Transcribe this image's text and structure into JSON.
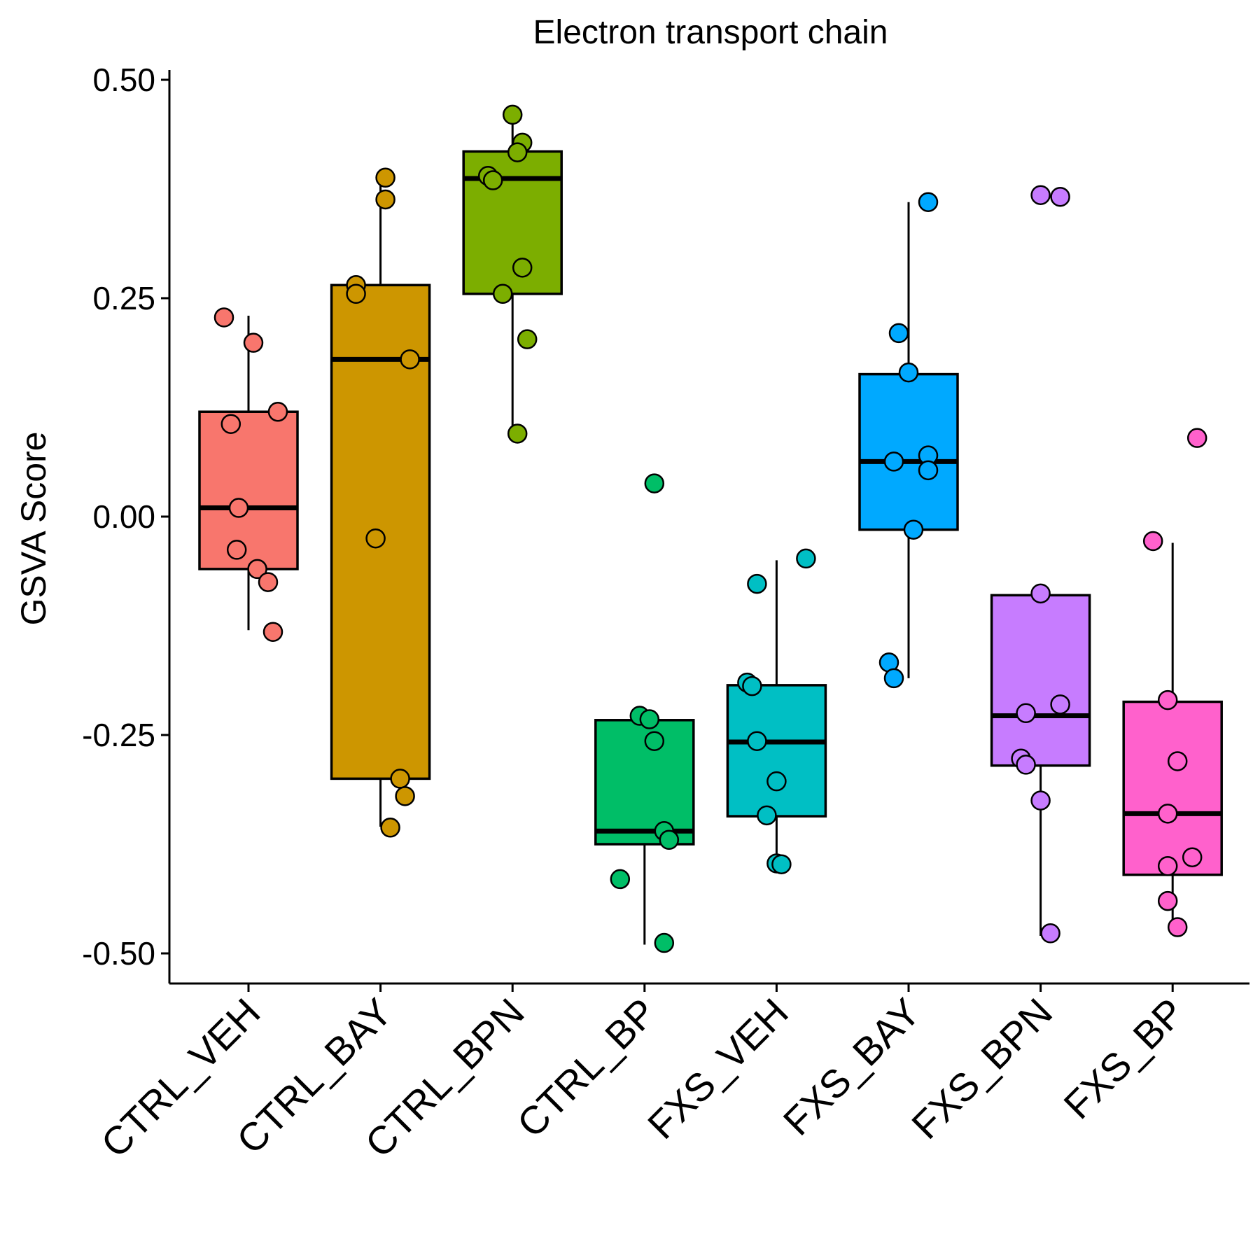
{
  "chart_data": {
    "type": "box",
    "title": "Electron transport chain",
    "xlabel": "",
    "ylabel": "GSVA Score",
    "ylim": [
      -0.535,
      0.51
    ],
    "yticks": [
      0.5,
      0.25,
      0.0,
      -0.25,
      -0.5
    ],
    "ytick_labels": [
      "0.50",
      "0.25",
      "0.00",
      "-0.25",
      "-0.50"
    ],
    "grid": false,
    "legend": "none",
    "categories": [
      "CTRL_VEH",
      "CTRL_BAY",
      "CTRL_BPN",
      "CTRL_BP",
      "FXS_VEH",
      "FXS_BAY",
      "FXS_BPN",
      "FXS_BP"
    ],
    "colors": [
      "#F8766D",
      "#CD9600",
      "#7CAE00",
      "#00BE67",
      "#00BFC4",
      "#00A9FF",
      "#C77CFF",
      "#FF61CC"
    ],
    "boxes": [
      {
        "q1": -0.06,
        "median": 0.01,
        "q3": 0.12,
        "whisker_low": -0.13,
        "whisker_high": 0.23
      },
      {
        "q1": -0.3,
        "median": 0.18,
        "q3": 0.265,
        "whisker_low": -0.355,
        "whisker_high": 0.39
      },
      {
        "q1": 0.255,
        "median": 0.387,
        "q3": 0.418,
        "whisker_low": 0.095,
        "whisker_high": 0.46
      },
      {
        "q1": -0.375,
        "median": -0.36,
        "q3": -0.233,
        "whisker_low": -0.49,
        "whisker_high": -0.228
      },
      {
        "q1": -0.343,
        "median": -0.258,
        "q3": -0.193,
        "whisker_low": -0.398,
        "whisker_high": -0.05
      },
      {
        "q1": -0.015,
        "median": 0.063,
        "q3": 0.163,
        "whisker_low": -0.185,
        "whisker_high": 0.36
      },
      {
        "q1": -0.285,
        "median": -0.228,
        "q3": -0.09,
        "whisker_low": -0.48,
        "whisker_high": -0.09
      },
      {
        "q1": -0.41,
        "median": -0.34,
        "q3": -0.212,
        "whisker_low": -0.47,
        "whisker_high": -0.03
      }
    ],
    "points": [
      [
        0.228,
        0.199,
        0.12,
        0.106,
        0.01,
        -0.038,
        -0.06,
        -0.075,
        -0.132
      ],
      [
        0.388,
        0.363,
        0.265,
        0.255,
        0.18,
        -0.025,
        -0.3,
        -0.32,
        -0.356
      ],
      [
        0.46,
        0.428,
        0.417,
        0.39,
        0.385,
        0.285,
        0.255,
        0.203,
        0.095
      ],
      [
        0.038,
        -0.228,
        -0.232,
        -0.257,
        -0.36,
        -0.37,
        -0.415,
        -0.488
      ],
      [
        -0.048,
        -0.077,
        -0.19,
        -0.194,
        -0.257,
        -0.303,
        -0.342,
        -0.397,
        -0.398
      ],
      [
        0.36,
        0.21,
        0.165,
        0.07,
        0.063,
        0.053,
        -0.015,
        -0.167,
        -0.185
      ],
      [
        0.368,
        0.366,
        -0.088,
        -0.215,
        -0.225,
        -0.277,
        -0.284,
        -0.325,
        -0.477
      ],
      [
        0.09,
        -0.028,
        -0.21,
        -0.28,
        -0.34,
        -0.39,
        -0.4,
        -0.44,
        -0.47
      ]
    ],
    "point_offsets": [
      [
        -0.25,
        0.05,
        0.3,
        -0.18,
        -0.1,
        -0.12,
        0.09,
        0.2,
        0.25
      ],
      [
        0.05,
        0.05,
        -0.25,
        -0.25,
        0.3,
        -0.05,
        0.2,
        0.25,
        0.1
      ],
      [
        0.0,
        0.1,
        0.05,
        -0.25,
        -0.2,
        0.1,
        -0.1,
        0.15,
        0.05
      ],
      [
        0.1,
        -0.05,
        0.05,
        0.1,
        0.2,
        0.25,
        -0.25,
        0.2
      ],
      [
        0.3,
        -0.2,
        -0.3,
        -0.25,
        -0.2,
        0.0,
        -0.1,
        0.0,
        0.05
      ],
      [
        0.2,
        -0.1,
        0.0,
        0.2,
        -0.15,
        0.2,
        0.05,
        -0.2,
        -0.15
      ],
      [
        0.0,
        0.2,
        0.0,
        0.2,
        -0.15,
        -0.2,
        -0.15,
        0.0,
        0.1
      ],
      [
        0.25,
        -0.2,
        -0.05,
        0.05,
        -0.05,
        0.2,
        -0.05,
        -0.05,
        0.05
      ]
    ]
  }
}
